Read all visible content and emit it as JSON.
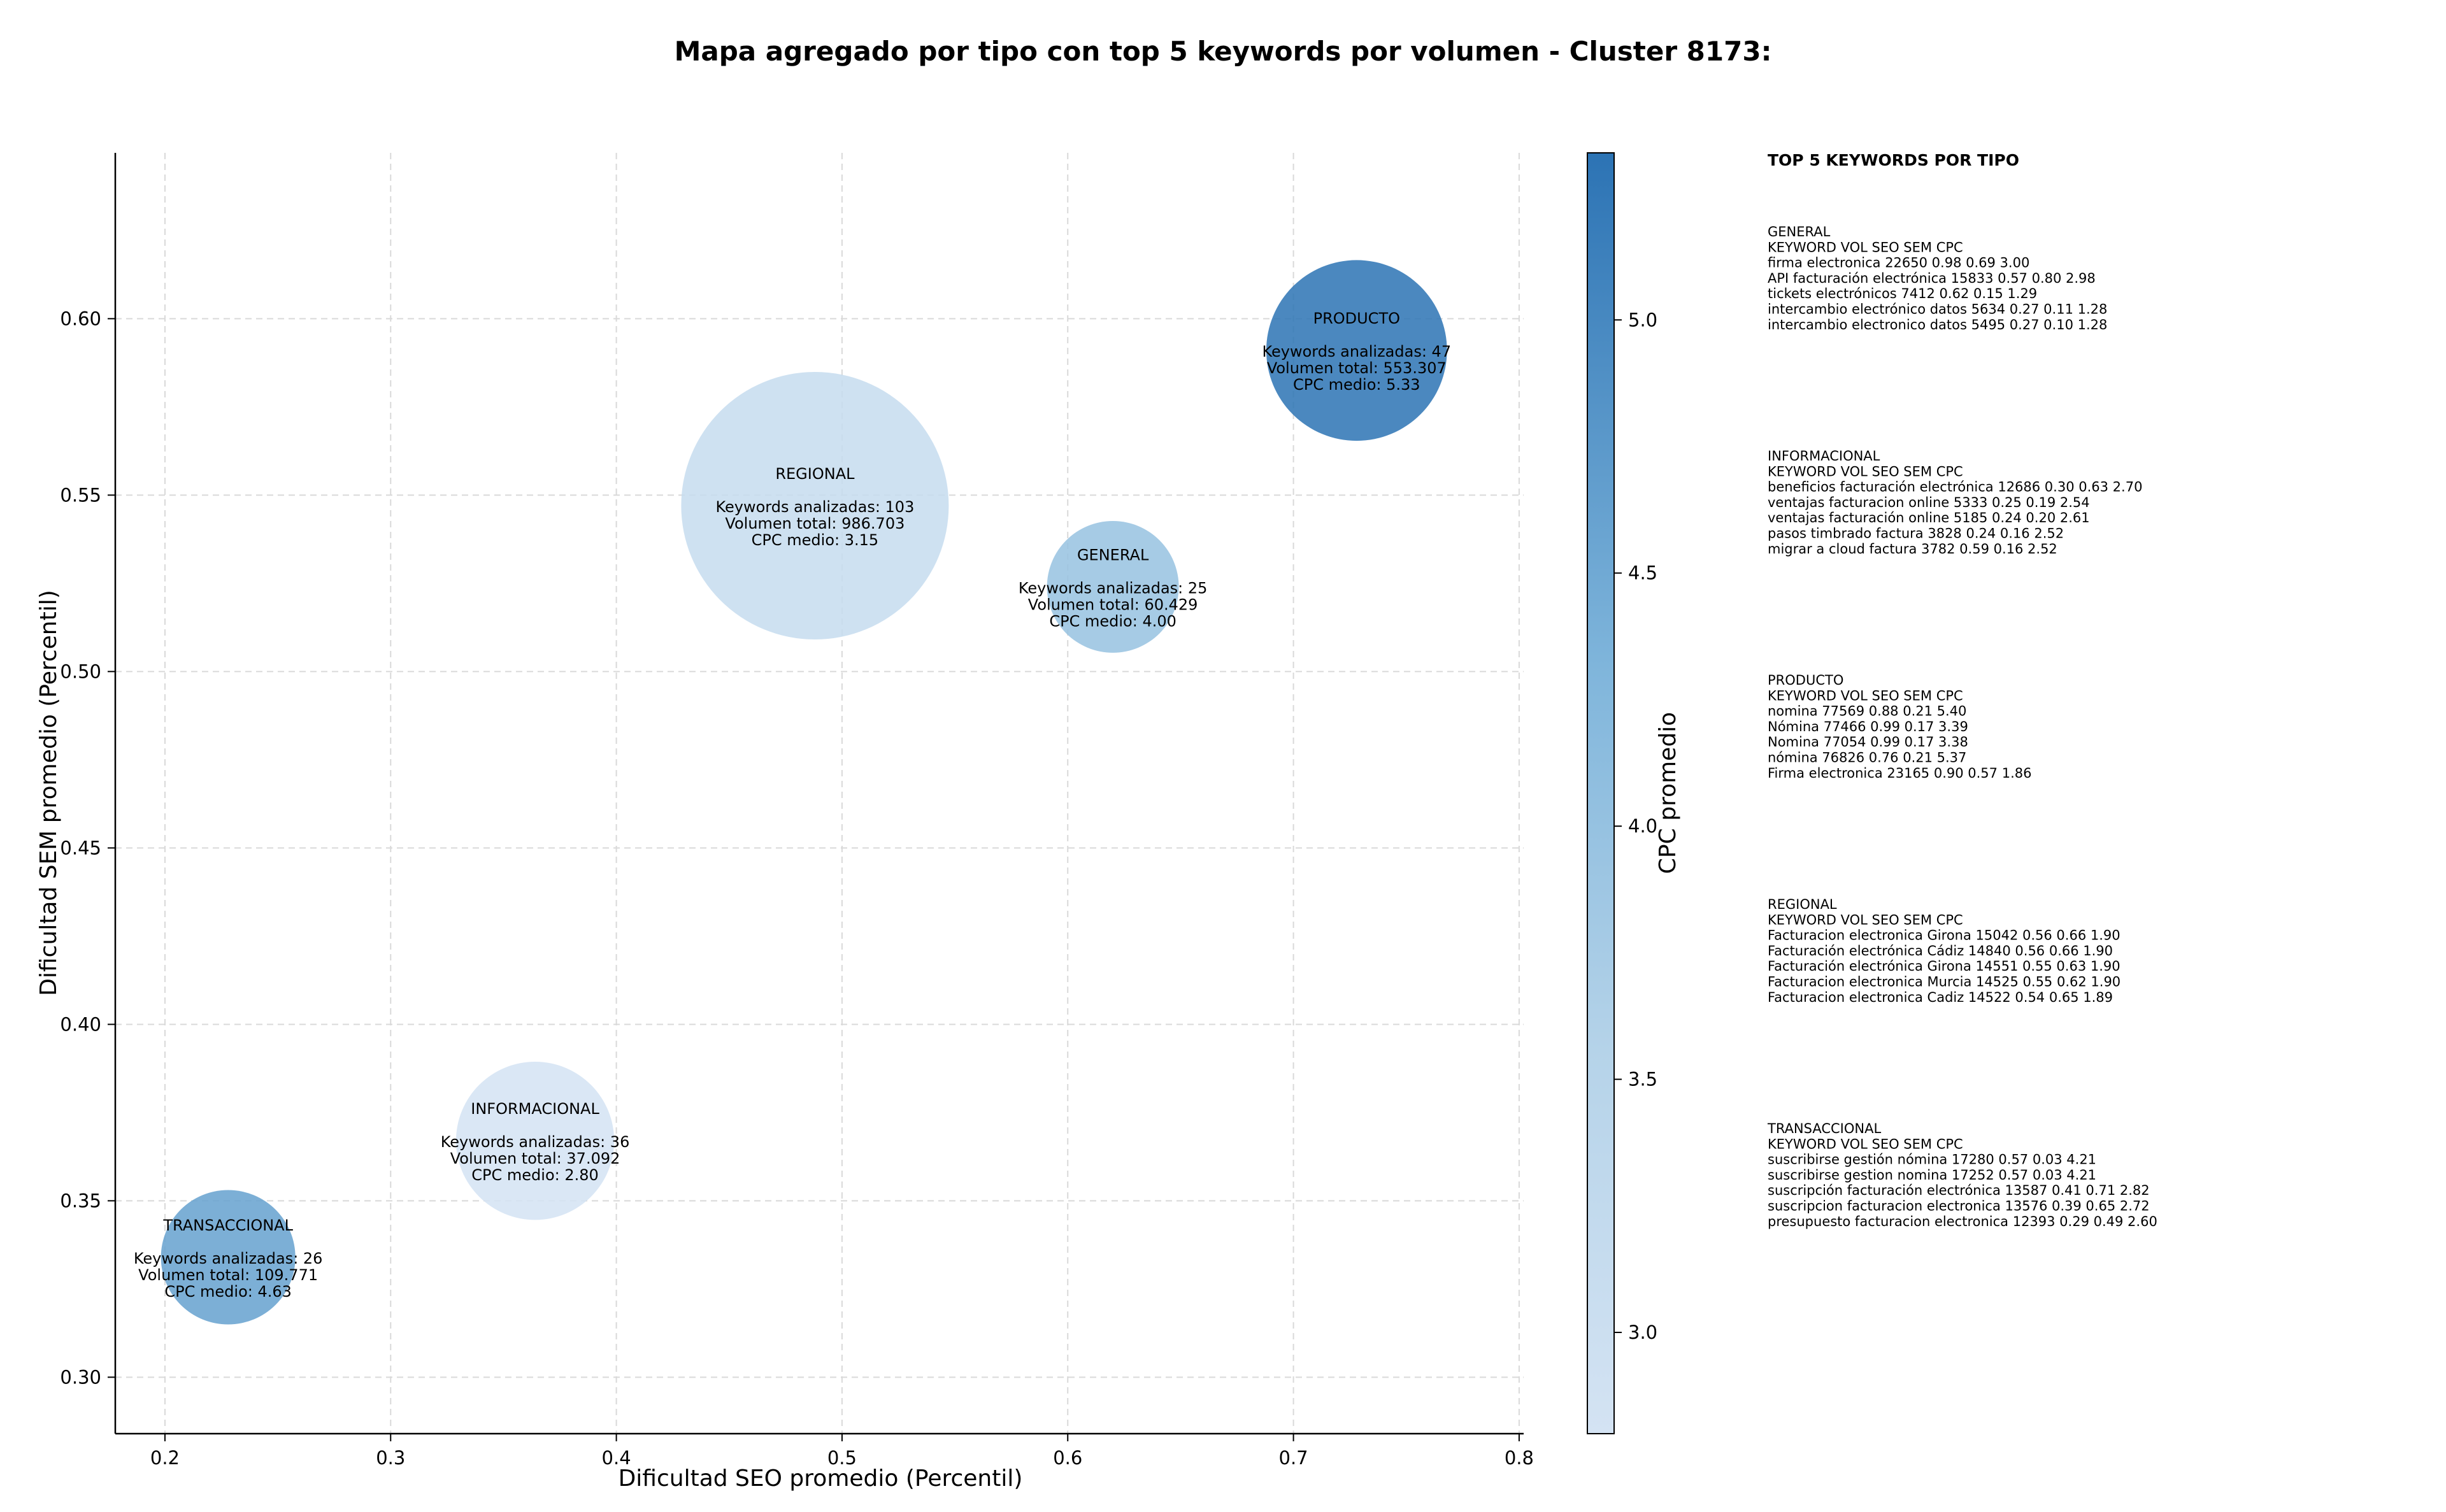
{
  "chart_data": {
    "type": "scatter",
    "title": "Mapa agregado por tipo con top 5 keywords por volumen - Cluster 8173:",
    "xlabel": "Dificultad SEO promedio (Percentil)",
    "ylabel": "Dificultad SEM promedio (Percentil)",
    "xlim": [
      0.178,
      0.802
    ],
    "ylim": [
      0.284,
      0.647
    ],
    "x_ticks": [
      0.2,
      0.3,
      0.4,
      0.5,
      0.6,
      0.7,
      0.8
    ],
    "y_ticks": [
      0.3,
      0.35,
      0.4,
      0.45,
      0.5,
      0.55,
      0.6
    ],
    "grid": true,
    "colorbar": {
      "label": "CPC promedio",
      "min": 2.8,
      "max": 5.33,
      "ticks": [
        3.0,
        3.5,
        4.0,
        4.5,
        5.0
      ],
      "color_low": "#d4e3f3",
      "color_high": "#2c73b4"
    },
    "bubbles": [
      {
        "name": "PRODUCTO",
        "x": 0.728,
        "y": 0.591,
        "keywords_label": "Keywords analizadas: 47",
        "volume_label": "Volumen total: 553.307",
        "cpc_label": "CPC medio: 5.33",
        "cpc": 5.33,
        "size": 47
      },
      {
        "name": "REGIONAL",
        "x": 0.488,
        "y": 0.547,
        "keywords_label": "Keywords analizadas: 103",
        "volume_label": "Volumen total: 986.703",
        "cpc_label": "CPC medio: 3.15",
        "cpc": 3.15,
        "size": 103
      },
      {
        "name": "GENERAL",
        "x": 0.62,
        "y": 0.524,
        "keywords_label": "Keywords analizadas: 25",
        "volume_label": "Volumen total: 60.429",
        "cpc_label": "CPC medio: 4.00",
        "cpc": 4.0,
        "size": 25
      },
      {
        "name": "INFORMACIONAL",
        "x": 0.364,
        "y": 0.367,
        "keywords_label": "Keywords analizadas: 36",
        "volume_label": "Volumen total: 37.092",
        "cpc_label": "CPC medio: 2.80",
        "cpc": 2.8,
        "size": 36
      },
      {
        "name": "TRANSACCIONAL",
        "x": 0.228,
        "y": 0.334,
        "keywords_label": "Keywords analizadas: 26",
        "volume_label": "Volumen total: 109.771",
        "cpc_label": "CPC medio: 4.63",
        "cpc": 4.63,
        "size": 26
      }
    ]
  },
  "side_panel": {
    "heading": "TOP 5 KEYWORDS POR TIPO",
    "groups": [
      {
        "name": "GENERAL",
        "columns": [
          "KEYWORD",
          "VOL",
          "SEO",
          "SEM",
          "CPC"
        ],
        "rows": [
          [
            "firma electronica",
            "22650",
            "0.98",
            "0.69",
            "3.00"
          ],
          [
            "API facturación electrónica",
            "15833",
            "0.57",
            "0.80",
            "2.98"
          ],
          [
            "tickets electrónicos",
            "7412",
            "0.62",
            "0.15",
            "1.29"
          ],
          [
            "intercambio electrónico datos",
            "5634",
            "0.27",
            "0.11",
            "1.28"
          ],
          [
            "intercambio electronico datos",
            "5495",
            "0.27",
            "0.10",
            "1.28"
          ]
        ]
      },
      {
        "name": "INFORMACIONAL",
        "columns": [
          "KEYWORD",
          "VOL",
          "SEO",
          "SEM",
          "CPC"
        ],
        "rows": [
          [
            "beneficios facturación electrónica",
            "12686",
            "0.30",
            "0.63",
            "2.70"
          ],
          [
            "ventajas facturacion online",
            "5333",
            "0.25",
            "0.19",
            "2.54"
          ],
          [
            "ventajas facturación online",
            "5185",
            "0.24",
            "0.20",
            "2.61"
          ],
          [
            "pasos timbrado factura",
            "3828",
            "0.24",
            "0.16",
            "2.52"
          ],
          [
            "migrar a cloud factura",
            "3782",
            "0.59",
            "0.16",
            "2.52"
          ]
        ]
      },
      {
        "name": "PRODUCTO",
        "columns": [
          "KEYWORD",
          "VOL",
          "SEO",
          "SEM",
          "CPC"
        ],
        "rows": [
          [
            "nomina",
            "77569",
            "0.88",
            "0.21",
            "5.40"
          ],
          [
            "Nómina",
            "77466",
            "0.99",
            "0.17",
            "3.39"
          ],
          [
            "Nomina",
            "77054",
            "0.99",
            "0.17",
            "3.38"
          ],
          [
            "nómina",
            "76826",
            "0.76",
            "0.21",
            "5.37"
          ],
          [
            "Firma electronica",
            "23165",
            "0.90",
            "0.57",
            "1.86"
          ]
        ]
      },
      {
        "name": "REGIONAL",
        "columns": [
          "KEYWORD",
          "VOL",
          "SEO",
          "SEM",
          "CPC"
        ],
        "rows": [
          [
            "Facturacion electronica Girona",
            "15042",
            "0.56",
            "0.66",
            "1.90"
          ],
          [
            "Facturación electrónica Cádiz",
            "14840",
            "0.56",
            "0.66",
            "1.90"
          ],
          [
            "Facturación electrónica Girona",
            "14551",
            "0.55",
            "0.63",
            "1.90"
          ],
          [
            "Facturacion electronica Murcia",
            "14525",
            "0.55",
            "0.62",
            "1.90"
          ],
          [
            "Facturacion electronica Cadiz",
            "14522",
            "0.54",
            "0.65",
            "1.89"
          ]
        ]
      },
      {
        "name": "TRANSACCIONAL",
        "columns": [
          "KEYWORD",
          "VOL",
          "SEO",
          "SEM",
          "CPC"
        ],
        "rows": [
          [
            "suscribirse gestión nómina",
            "17280",
            "0.57",
            "0.03",
            "4.21"
          ],
          [
            "suscribirse gestion nomina",
            "17252",
            "0.57",
            "0.03",
            "4.21"
          ],
          [
            "suscripción facturación electrónica",
            "13587",
            "0.41",
            "0.71",
            "2.82"
          ],
          [
            "suscripcion facturacion electronica",
            "13576",
            "0.39",
            "0.65",
            "2.72"
          ],
          [
            "presupuesto facturacion electronica",
            "12393",
            "0.29",
            "0.49",
            "2.60"
          ]
        ]
      }
    ]
  }
}
